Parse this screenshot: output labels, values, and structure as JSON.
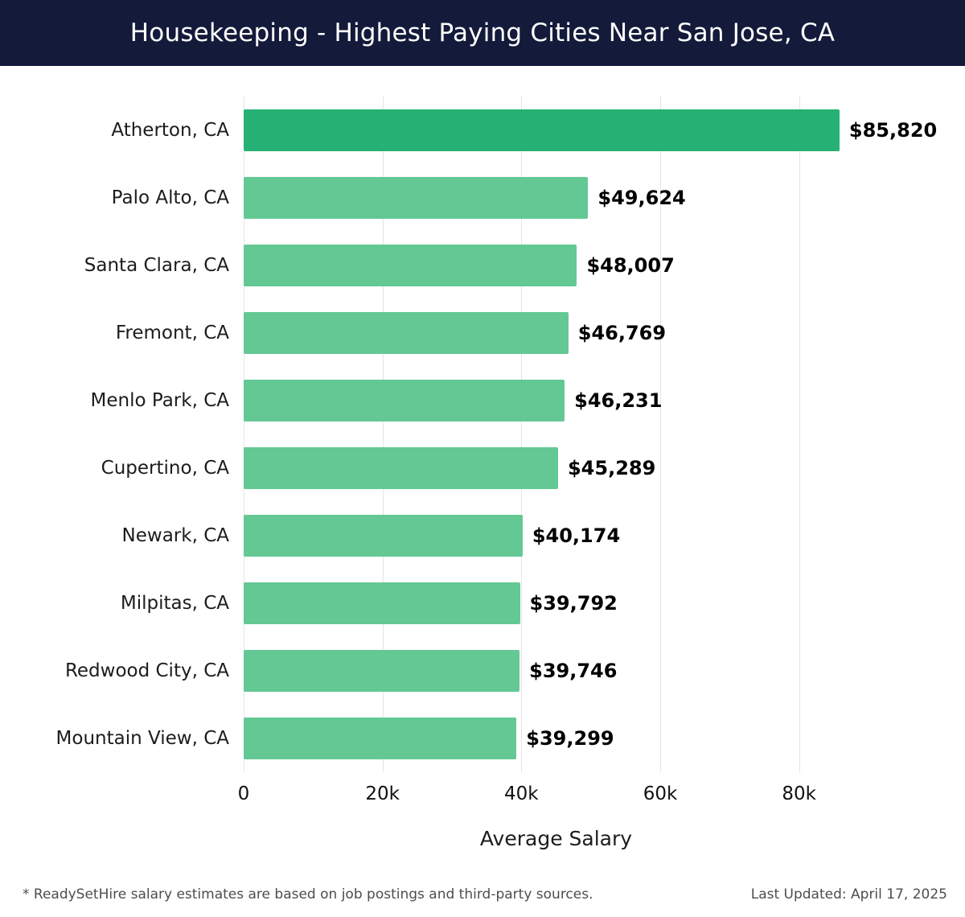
{
  "header": {
    "title": "Housekeeping - Highest Paying Cities Near San Jose, CA",
    "bg_color": "#141a3a",
    "text_color": "#ffffff"
  },
  "chart_data": {
    "type": "bar",
    "orientation": "horizontal",
    "title": "Housekeeping - Highest Paying Cities Near San Jose, CA",
    "categories": [
      "Atherton, CA",
      "Palo Alto, CA",
      "Santa Clara, CA",
      "Fremont, CA",
      "Menlo Park, CA",
      "Cupertino, CA",
      "Newark, CA",
      "Milpitas, CA",
      "Redwood City, CA",
      "Mountain View, CA"
    ],
    "values": [
      85820,
      49624,
      48007,
      46769,
      46231,
      45289,
      40174,
      39792,
      39746,
      39299
    ],
    "value_labels": [
      "$85,820",
      "$49,624",
      "$48,007",
      "$46,769",
      "$46,231",
      "$45,289",
      "$40,174",
      "$39,792",
      "$39,746",
      "$39,299"
    ],
    "xlabel": "Average Salary",
    "ylabel": "",
    "xlim": [
      0,
      90000
    ],
    "x_ticks": [
      {
        "value": 0,
        "label": "0"
      },
      {
        "value": 20000,
        "label": "20k"
      },
      {
        "value": 40000,
        "label": "40k"
      },
      {
        "value": 60000,
        "label": "60k"
      },
      {
        "value": 80000,
        "label": "80k"
      }
    ],
    "grid": true,
    "legend": "none",
    "bar_color": "#63c894",
    "highlight_color": "#25b173",
    "highlight_index": 0
  },
  "footer": {
    "note": "* ReadySetHire salary estimates are based on job postings and third-party sources.",
    "last_updated": "Last Updated: April 17, 2025"
  }
}
